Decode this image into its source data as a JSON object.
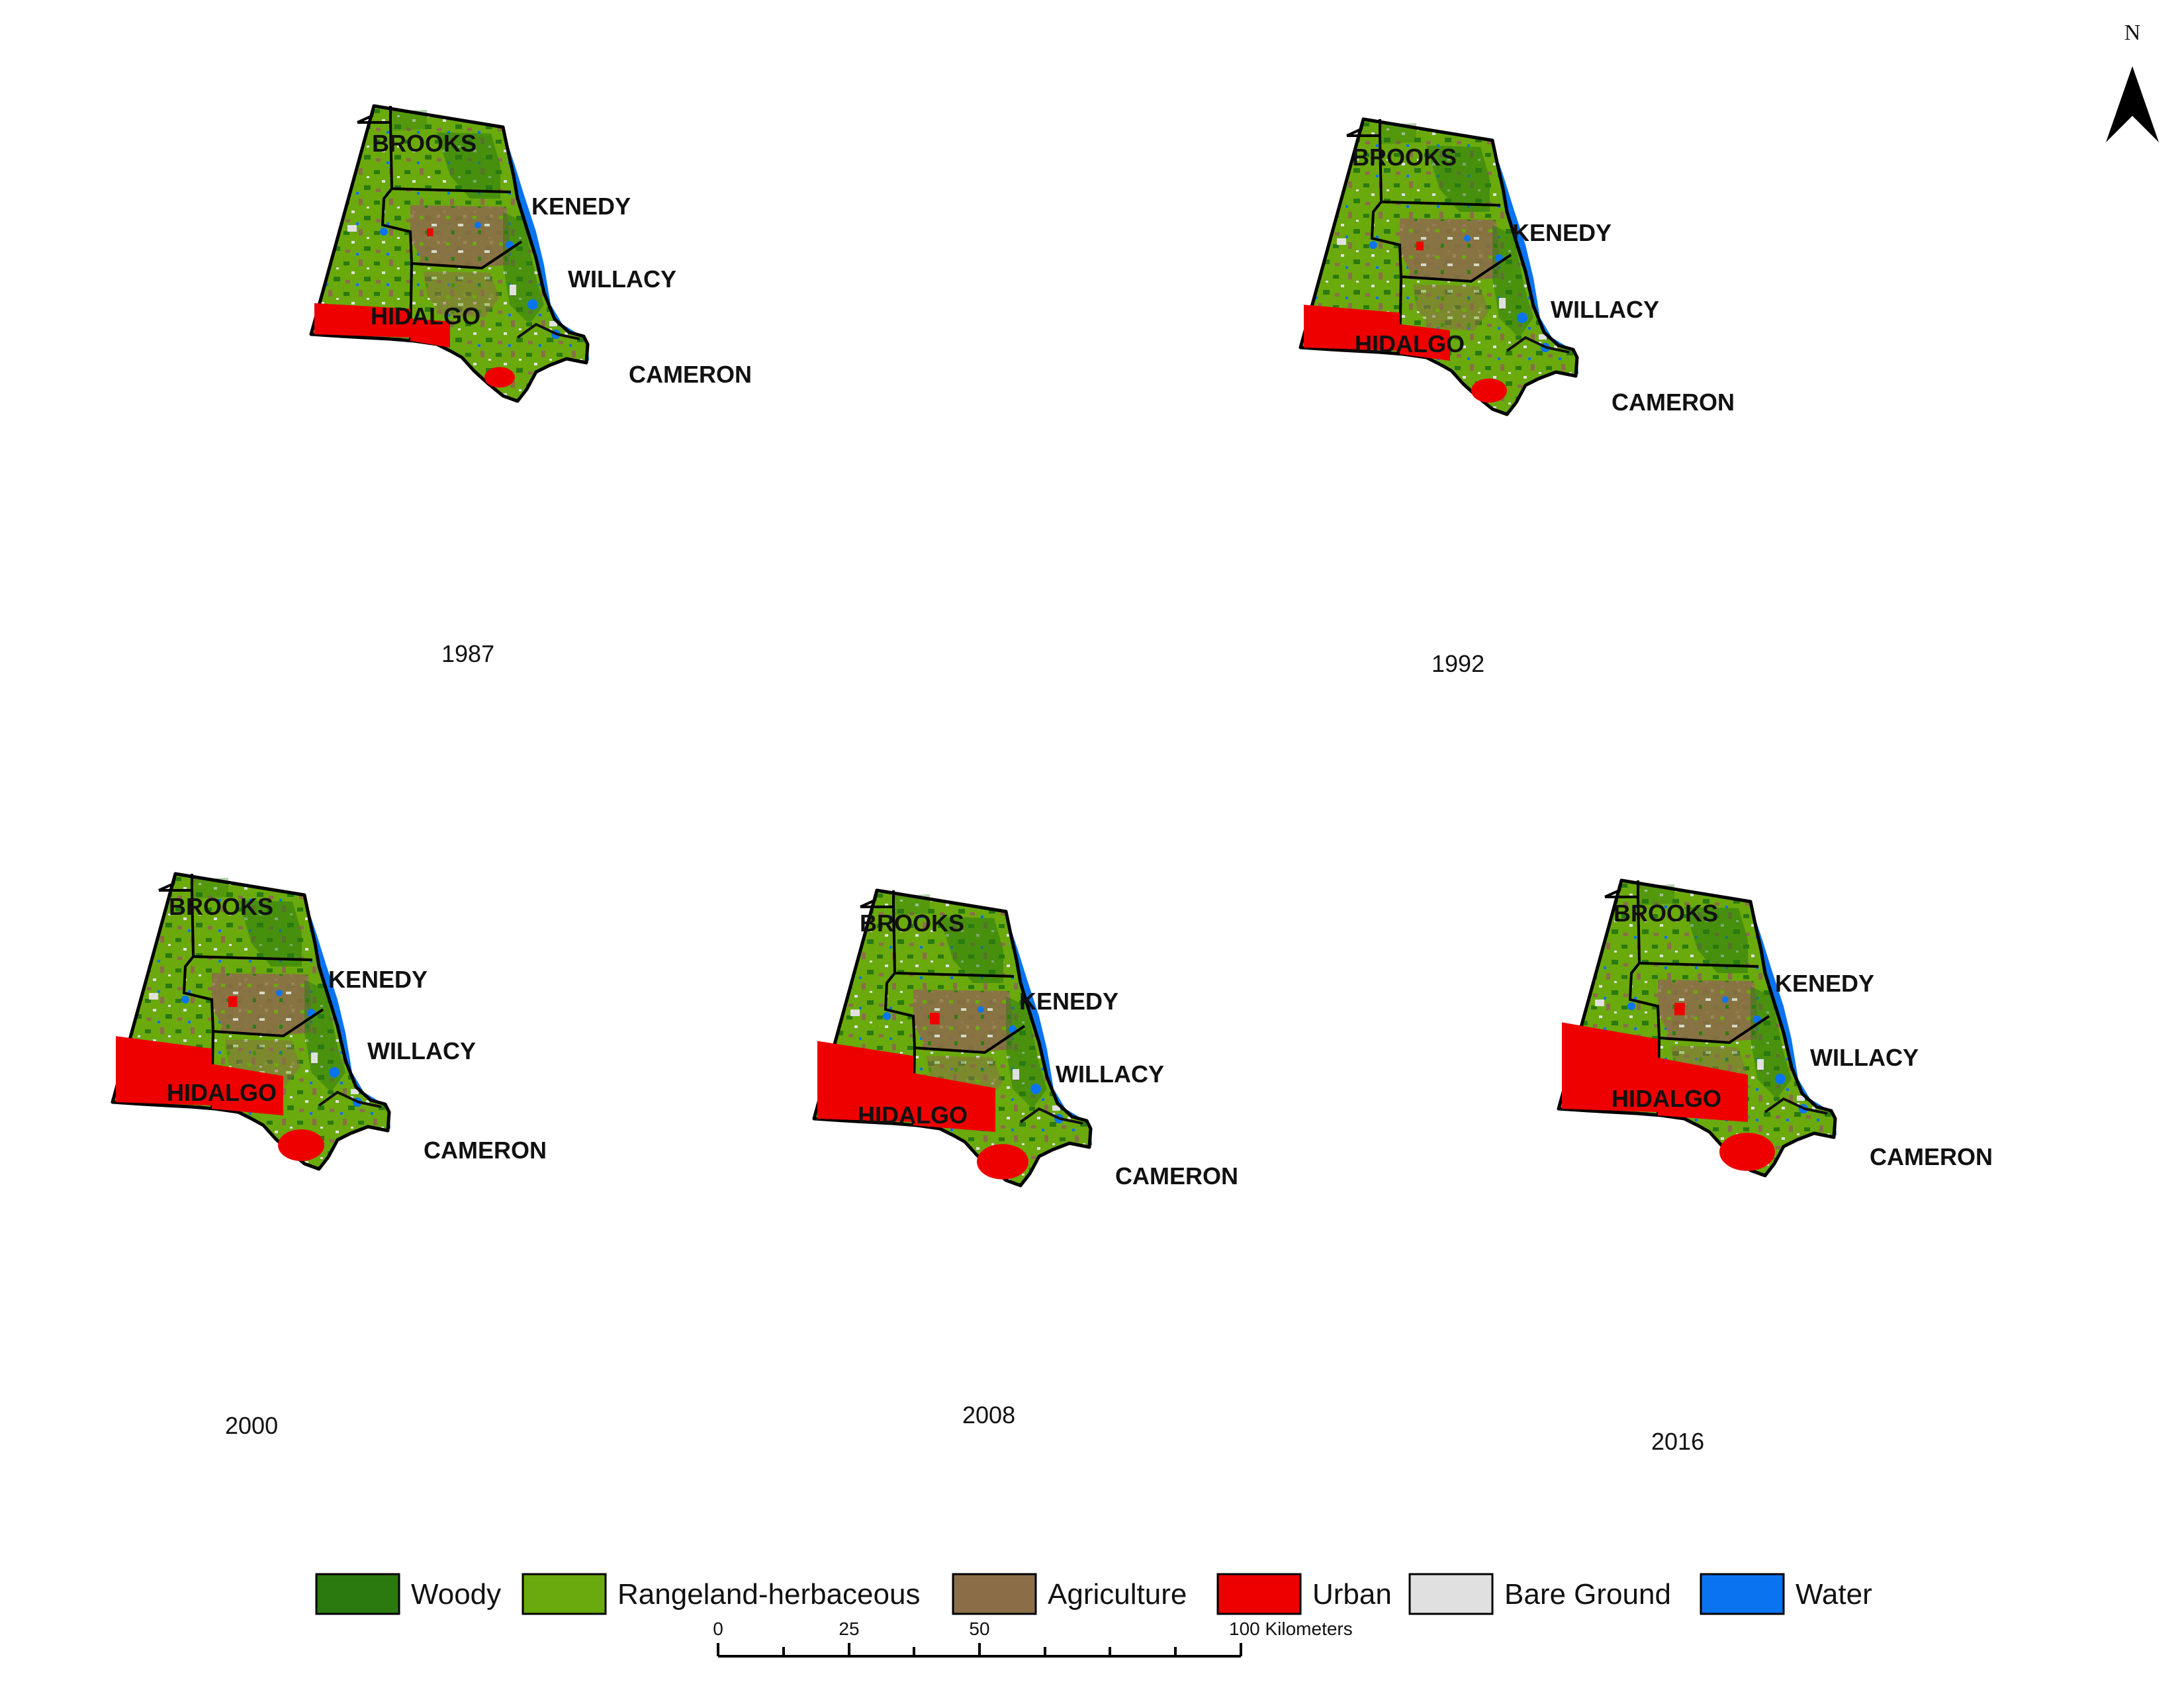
{
  "maps": [
    {
      "year": "1987",
      "urban": 0.1
    },
    {
      "year": "1992",
      "urban": 0.18
    },
    {
      "year": "2000",
      "urban": 0.34
    },
    {
      "year": "2008",
      "urban": 0.42
    },
    {
      "year": "2016",
      "urban": 0.48
    }
  ],
  "counties": {
    "brooks": "BROOKS",
    "kenedy": "KENEDY",
    "willacy": "WILLACY",
    "hidalgo": "HIDALGO",
    "cameron": "CAMERON"
  },
  "legend": [
    {
      "label": "Woody",
      "color": "#2a7a10"
    },
    {
      "label": "Rangeland-herbaceous",
      "color": "#6aaa0c"
    },
    {
      "label": "Agriculture",
      "color": "#8b6e48"
    },
    {
      "label": "Urban",
      "color": "#ee0000"
    },
    {
      "label": "Bare Ground",
      "color": "#e0e0e0"
    },
    {
      "label": "Water",
      "color": "#0a74f0"
    }
  ],
  "scale_bar": {
    "ticks": [
      "0",
      "25",
      "50",
      "100 Kilometers"
    ]
  },
  "north_arrow": {
    "label": "N",
    "icon": "north-arrow-icon"
  }
}
